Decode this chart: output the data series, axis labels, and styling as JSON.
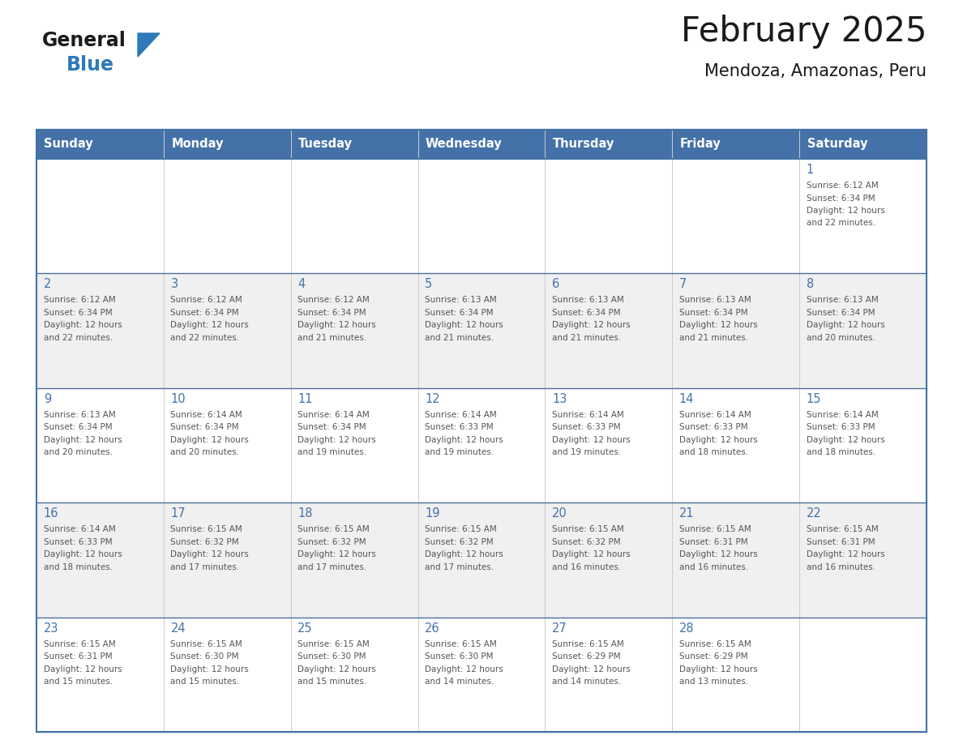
{
  "title": "February 2025",
  "subtitle": "Mendoza, Amazonas, Peru",
  "days_of_week": [
    "Sunday",
    "Monday",
    "Tuesday",
    "Wednesday",
    "Thursday",
    "Friday",
    "Saturday"
  ],
  "header_bg": "#4472A8",
  "header_text": "#FFFFFF",
  "cell_bg_white": "#FFFFFF",
  "cell_bg_gray": "#F0F0F0",
  "border_color": "#4472A8",
  "row_border_color": "#4E6E9E",
  "day_number_color": "#4472A8",
  "info_text_color": "#555555",
  "title_color": "#1a1a1a",
  "subtitle_color": "#1a1a1a",
  "logo_text_color": "#1a1a1a",
  "logo_blue_color": "#2E7AB8",
  "triangle_color": "#2E7AB8",
  "calendar_data": [
    [
      null,
      null,
      null,
      null,
      null,
      null,
      1
    ],
    [
      2,
      3,
      4,
      5,
      6,
      7,
      8
    ],
    [
      9,
      10,
      11,
      12,
      13,
      14,
      15
    ],
    [
      16,
      17,
      18,
      19,
      20,
      21,
      22
    ],
    [
      23,
      24,
      25,
      26,
      27,
      28,
      null
    ]
  ],
  "sunrise_data": {
    "1": "6:12 AM",
    "2": "6:12 AM",
    "3": "6:12 AM",
    "4": "6:12 AM",
    "5": "6:13 AM",
    "6": "6:13 AM",
    "7": "6:13 AM",
    "8": "6:13 AM",
    "9": "6:13 AM",
    "10": "6:14 AM",
    "11": "6:14 AM",
    "12": "6:14 AM",
    "13": "6:14 AM",
    "14": "6:14 AM",
    "15": "6:14 AM",
    "16": "6:14 AM",
    "17": "6:15 AM",
    "18": "6:15 AM",
    "19": "6:15 AM",
    "20": "6:15 AM",
    "21": "6:15 AM",
    "22": "6:15 AM",
    "23": "6:15 AM",
    "24": "6:15 AM",
    "25": "6:15 AM",
    "26": "6:15 AM",
    "27": "6:15 AM",
    "28": "6:15 AM"
  },
  "sunset_data": {
    "1": "6:34 PM",
    "2": "6:34 PM",
    "3": "6:34 PM",
    "4": "6:34 PM",
    "5": "6:34 PM",
    "6": "6:34 PM",
    "7": "6:34 PM",
    "8": "6:34 PM",
    "9": "6:34 PM",
    "10": "6:34 PM",
    "11": "6:34 PM",
    "12": "6:33 PM",
    "13": "6:33 PM",
    "14": "6:33 PM",
    "15": "6:33 PM",
    "16": "6:33 PM",
    "17": "6:32 PM",
    "18": "6:32 PM",
    "19": "6:32 PM",
    "20": "6:32 PM",
    "21": "6:31 PM",
    "22": "6:31 PM",
    "23": "6:31 PM",
    "24": "6:30 PM",
    "25": "6:30 PM",
    "26": "6:30 PM",
    "27": "6:29 PM",
    "28": "6:29 PM"
  },
  "daylight_data": {
    "1": "12 hours and 22 minutes.",
    "2": "12 hours and 22 minutes.",
    "3": "12 hours and 22 minutes.",
    "4": "12 hours and 21 minutes.",
    "5": "12 hours and 21 minutes.",
    "6": "12 hours and 21 minutes.",
    "7": "12 hours and 21 minutes.",
    "8": "12 hours and 20 minutes.",
    "9": "12 hours and 20 minutes.",
    "10": "12 hours and 20 minutes.",
    "11": "12 hours and 19 minutes.",
    "12": "12 hours and 19 minutes.",
    "13": "12 hours and 19 minutes.",
    "14": "12 hours and 18 minutes.",
    "15": "12 hours and 18 minutes.",
    "16": "12 hours and 18 minutes.",
    "17": "12 hours and 17 minutes.",
    "18": "12 hours and 17 minutes.",
    "19": "12 hours and 17 minutes.",
    "20": "12 hours and 16 minutes.",
    "21": "12 hours and 16 minutes.",
    "22": "12 hours and 16 minutes.",
    "23": "12 hours and 15 minutes.",
    "24": "12 hours and 15 minutes.",
    "25": "12 hours and 15 minutes.",
    "26": "12 hours and 14 minutes.",
    "27": "12 hours and 14 minutes.",
    "28": "12 hours and 13 minutes."
  }
}
